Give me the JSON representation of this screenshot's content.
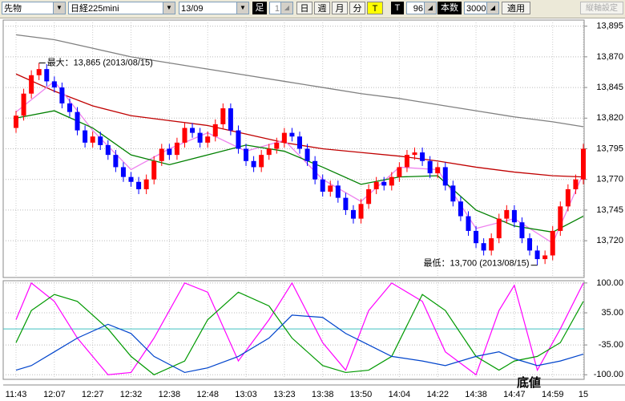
{
  "toolbar": {
    "product": "先物",
    "symbol": "日経225mini",
    "contract": "13/09",
    "bar_label": "足",
    "bar_count": "1",
    "periods": [
      "日",
      "週",
      "月",
      "分",
      "T"
    ],
    "tick_label": "T",
    "tick_count": "96",
    "count_label": "本数",
    "count": "3000",
    "apply": "適用",
    "axis_settings": "縦軸設定"
  },
  "chart_data": [
    {
      "type": "candlestick",
      "up_color": "#ff0000",
      "down_color": "#0000ff",
      "categories": [
        "11:43",
        null,
        null,
        null,
        null,
        "12:07",
        null,
        null,
        null,
        null,
        "12:27",
        null,
        null,
        null,
        null,
        "12:32",
        null,
        null,
        null,
        null,
        "12:38",
        null,
        null,
        null,
        null,
        "12:48",
        null,
        null,
        null,
        null,
        "13:03",
        null,
        null,
        null,
        null,
        "13:23",
        null,
        null,
        null,
        null,
        "13:38",
        null,
        null,
        null,
        null,
        "13:50",
        null,
        null,
        null,
        null,
        "14:04",
        null,
        null,
        null,
        null,
        "14:22",
        null,
        null,
        null,
        null,
        "14:38",
        null,
        null,
        null,
        null,
        "14:47",
        null,
        null,
        null,
        null,
        "14:59",
        null,
        null,
        null,
        "15"
      ],
      "open": [
        13812,
        13822,
        13840,
        13855,
        13860,
        13850,
        13845,
        13832,
        13825,
        13810,
        13800,
        13805,
        13798,
        13790,
        13780,
        13772,
        13768,
        13762,
        13770,
        13785,
        13795,
        13790,
        13800,
        13812,
        13808,
        13800,
        13805,
        13815,
        13828,
        13810,
        13795,
        13785,
        13780,
        13790,
        13795,
        13800,
        13808,
        13805,
        13795,
        13785,
        13770,
        13760,
        13765,
        13755,
        13745,
        13738,
        13750,
        13762,
        13768,
        13765,
        13772,
        13780,
        13790,
        13792,
        13785,
        13775,
        13780,
        13765,
        13752,
        13740,
        13728,
        13718,
        13712,
        13722,
        13738,
        13745,
        13735,
        13722,
        13712,
        13705,
        13708,
        13728,
        13748,
        13762,
        13770
      ],
      "high": [
        13826,
        13844,
        13859,
        13865,
        13864,
        13854,
        13849,
        13836,
        13829,
        13814,
        13809,
        13809,
        13802,
        13794,
        13784,
        13776,
        13772,
        13774,
        13789,
        13799,
        13799,
        13804,
        13816,
        13816,
        13812,
        13809,
        13819,
        13832,
        13832,
        13814,
        13799,
        13789,
        13794,
        13799,
        13804,
        13812,
        13812,
        13809,
        13799,
        13789,
        13774,
        13769,
        13769,
        13759,
        13749,
        13754,
        13766,
        13772,
        13772,
        13776,
        13784,
        13794,
        13796,
        13796,
        13789,
        13784,
        13784,
        13769,
        13756,
        13744,
        13732,
        13722,
        13726,
        13742,
        13749,
        13749,
        13739,
        13726,
        13716,
        13712,
        13732,
        13752,
        13766,
        13774,
        13799
      ],
      "low": [
        13808,
        13818,
        13836,
        13851,
        13846,
        13841,
        13828,
        13821,
        13806,
        13796,
        13796,
        13794,
        13786,
        13776,
        13768,
        13764,
        13758,
        13758,
        13766,
        13781,
        13786,
        13786,
        13796,
        13804,
        13796,
        13796,
        13801,
        13811,
        13806,
        13791,
        13781,
        13776,
        13776,
        13786,
        13791,
        13796,
        13801,
        13791,
        13781,
        13766,
        13756,
        13756,
        13751,
        13741,
        13734,
        13734,
        13746,
        13758,
        13761,
        13761,
        13768,
        13776,
        13786,
        13781,
        13771,
        13771,
        13761,
        13748,
        13736,
        13724,
        13714,
        13708,
        13708,
        13718,
        13734,
        13731,
        13718,
        13708,
        13700,
        13701,
        13704,
        13724,
        13744,
        13758,
        13766
      ],
      "close": [
        13822,
        13840,
        13855,
        13860,
        13850,
        13845,
        13832,
        13825,
        13810,
        13800,
        13805,
        13798,
        13790,
        13780,
        13772,
        13768,
        13762,
        13770,
        13785,
        13795,
        13790,
        13800,
        13812,
        13808,
        13800,
        13805,
        13815,
        13828,
        13810,
        13795,
        13785,
        13780,
        13790,
        13795,
        13800,
        13808,
        13805,
        13795,
        13785,
        13770,
        13760,
        13765,
        13755,
        13745,
        13738,
        13750,
        13762,
        13768,
        13765,
        13772,
        13780,
        13790,
        13792,
        13785,
        13775,
        13780,
        13765,
        13752,
        13740,
        13728,
        13718,
        13712,
        13722,
        13738,
        13745,
        13735,
        13722,
        13712,
        13705,
        13708,
        13728,
        13748,
        13762,
        13770,
        13795
      ],
      "lines": [
        {
          "color": "#808080",
          "x": [
            0,
            5,
            10,
            15,
            20,
            25,
            30,
            35,
            40,
            45,
            50,
            55,
            60,
            65,
            70,
            74
          ],
          "values": [
            13888,
            13884,
            13877,
            13870,
            13865,
            13860,
            13855,
            13850,
            13845,
            13840,
            13836,
            13831,
            13826,
            13821,
            13817,
            13813
          ]
        },
        {
          "color": "#c00000",
          "x": [
            0,
            5,
            10,
            15,
            20,
            25,
            30,
            35,
            40,
            45,
            50,
            55,
            60,
            65,
            70,
            74
          ],
          "values": [
            13856,
            13842,
            13830,
            13822,
            13818,
            13814,
            13807,
            13800,
            13795,
            13792,
            13789,
            13785,
            13780,
            13776,
            13773,
            13772
          ]
        },
        {
          "color": "#ee82ee",
          "x": [
            0,
            5,
            10,
            15,
            20,
            25,
            30,
            35,
            40,
            45,
            50,
            55,
            60,
            65,
            70,
            74
          ],
          "values": [
            13825,
            13850,
            13810,
            13778,
            13795,
            13808,
            13793,
            13802,
            13770,
            13752,
            13780,
            13778,
            13730,
            13738,
            13718,
            13775
          ]
        },
        {
          "color": "#008000",
          "x": [
            0,
            5,
            10,
            15,
            20,
            25,
            30,
            35,
            40,
            45,
            50,
            55,
            60,
            65,
            70,
            74
          ],
          "values": [
            13820,
            13826,
            13812,
            13790,
            13782,
            13790,
            13798,
            13793,
            13780,
            13766,
            13772,
            13773,
            13745,
            13732,
            13727,
            13740
          ]
        }
      ],
      "ylim": [
        13690,
        13900
      ],
      "yticks": [
        {
          "value": 13895,
          "label": "13,895"
        },
        {
          "value": 13870,
          "label": "13,870"
        },
        {
          "value": 13845,
          "label": "13,845"
        },
        {
          "value": 13820,
          "label": "13,820"
        },
        {
          "value": 13795,
          "label": "13,795"
        },
        {
          "value": 13770,
          "label": "13,770"
        },
        {
          "value": 13745,
          "label": "13,745"
        },
        {
          "value": 13720,
          "label": "13,720"
        }
      ],
      "grid": true,
      "annotations": [
        {
          "text": "最大：13,865 (2013/08/15)",
          "index": 3,
          "value": 13865
        },
        {
          "text": "最低：13,700 (2013/08/15)",
          "index": 68,
          "value": 13700
        }
      ]
    },
    {
      "type": "line",
      "x": [
        0,
        2,
        5,
        8,
        12,
        15,
        18,
        22,
        25,
        29,
        33,
        36,
        40,
        43,
        46,
        49,
        53,
        56,
        60,
        63,
        65,
        68,
        71,
        74
      ],
      "series": [
        {
          "color": "#ff00ff",
          "values": [
            20,
            100,
            60,
            -20,
            -100,
            -95,
            -20,
            100,
            80,
            -70,
            20,
            100,
            -30,
            -90,
            40,
            100,
            60,
            -50,
            -100,
            40,
            95,
            -90,
            0,
            100
          ]
        },
        {
          "color": "#009900",
          "values": [
            -30,
            40,
            75,
            60,
            0,
            -60,
            -100,
            -70,
            20,
            80,
            50,
            -20,
            -80,
            -95,
            -90,
            -60,
            75,
            40,
            -60,
            -90,
            -70,
            -60,
            -30,
            60
          ]
        },
        {
          "color": "#0044cc",
          "values": [
            -90,
            -80,
            -50,
            -20,
            10,
            -10,
            -60,
            -95,
            -85,
            -60,
            -20,
            30,
            25,
            -10,
            -35,
            -60,
            -70,
            -80,
            -60,
            -50,
            -65,
            -80,
            -70,
            -55
          ]
        }
      ],
      "reference_line": 0,
      "ylim": [
        -110,
        105
      ],
      "yticks": [
        {
          "value": 100,
          "label": "100.00"
        },
        {
          "value": 35,
          "label": "35.00"
        },
        {
          "value": -35,
          "label": "-35.00"
        },
        {
          "value": -100,
          "label": "-100.00"
        }
      ],
      "grid": true,
      "annotation": "底値"
    }
  ]
}
